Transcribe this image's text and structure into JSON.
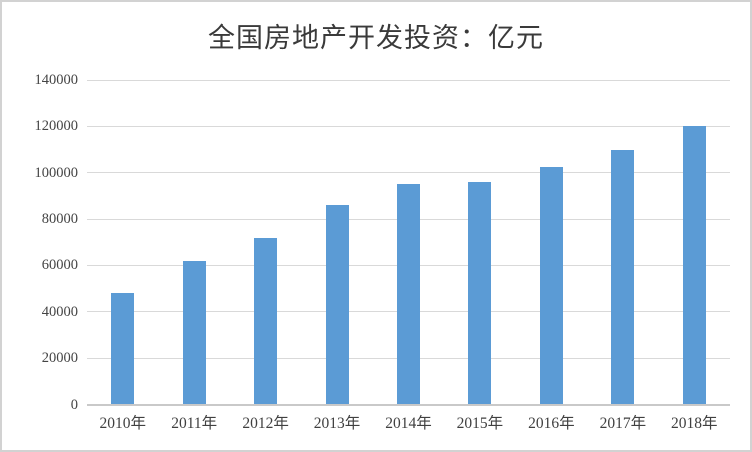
{
  "page": {
    "background_color": "#ffffff",
    "border_color": "#d2d2d2"
  },
  "chart_data": {
    "type": "bar",
    "title": "全国房地产开发投资：亿元",
    "categories": [
      "2010年",
      "2011年",
      "2012年",
      "2013年",
      "2014年",
      "2015年",
      "2016年",
      "2017年",
      "2018年"
    ],
    "values": [
      48300,
      61700,
      71800,
      86000,
      95000,
      96000,
      102600,
      109800,
      120300
    ],
    "xlabel": "",
    "ylabel": "",
    "ylim": [
      0,
      140000
    ],
    "ytick_interval": 20000,
    "ytick_labels": [
      "0",
      "20000",
      "40000",
      "60000",
      "80000",
      "100000",
      "120000",
      "140000"
    ],
    "grid": true,
    "legend_position": "none",
    "bar_color": "#5b9bd5",
    "gridline_color": "#d9d9d9",
    "axis_line_color": "#c9c9c9",
    "tick_label_color": "#444444",
    "title_color": "#3a3a3a"
  }
}
